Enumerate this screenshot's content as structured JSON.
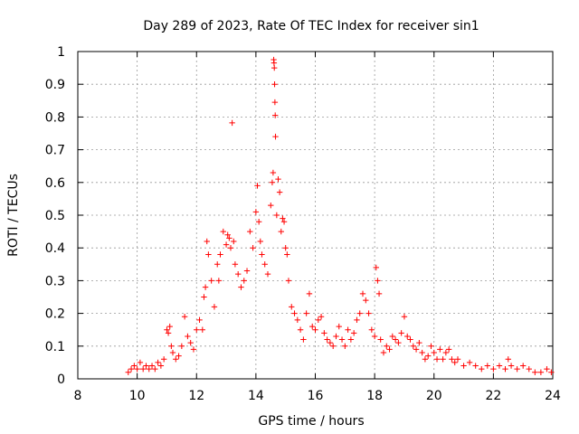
{
  "chart_data": {
    "type": "scatter",
    "title": "Day 289 of 2023, Rate Of TEC Index for receiver sin1",
    "xlabel": "GPS time / hours",
    "ylabel": "ROTI / TECUs",
    "xlim": [
      8,
      24
    ],
    "ylim": [
      0,
      1
    ],
    "grid": true,
    "marker": "+",
    "color": "#ff0000",
    "x_ticks": [
      "8",
      "10",
      "12",
      "14",
      "16",
      "18",
      "20",
      "22",
      "24"
    ],
    "y_ticks": [
      "0",
      "0.1",
      "0.2",
      "0.3",
      "0.4",
      "0.5",
      "0.6",
      "0.7",
      "0.8",
      "0.9",
      "1"
    ],
    "points": [
      [
        9.7,
        0.02
      ],
      [
        9.8,
        0.03
      ],
      [
        9.9,
        0.04
      ],
      [
        10.0,
        0.03
      ],
      [
        10.1,
        0.05
      ],
      [
        10.2,
        0.03
      ],
      [
        10.3,
        0.04
      ],
      [
        10.4,
        0.03
      ],
      [
        10.5,
        0.04
      ],
      [
        10.6,
        0.03
      ],
      [
        10.7,
        0.05
      ],
      [
        10.8,
        0.04
      ],
      [
        10.9,
        0.06
      ],
      [
        11.0,
        0.15
      ],
      [
        11.05,
        0.14
      ],
      [
        11.1,
        0.16
      ],
      [
        11.15,
        0.1
      ],
      [
        11.2,
        0.08
      ],
      [
        11.3,
        0.06
      ],
      [
        11.4,
        0.07
      ],
      [
        11.5,
        0.1
      ],
      [
        11.6,
        0.19
      ],
      [
        11.7,
        0.13
      ],
      [
        11.8,
        0.11
      ],
      [
        11.9,
        0.09
      ],
      [
        12.0,
        0.15
      ],
      [
        12.1,
        0.18
      ],
      [
        12.2,
        0.15
      ],
      [
        12.25,
        0.25
      ],
      [
        12.3,
        0.28
      ],
      [
        12.35,
        0.42
      ],
      [
        12.4,
        0.38
      ],
      [
        12.5,
        0.3
      ],
      [
        12.6,
        0.22
      ],
      [
        12.7,
        0.35
      ],
      [
        12.75,
        0.3
      ],
      [
        12.8,
        0.38
      ],
      [
        12.9,
        0.45
      ],
      [
        13.0,
        0.41
      ],
      [
        13.05,
        0.44
      ],
      [
        13.1,
        0.43
      ],
      [
        13.15,
        0.4
      ],
      [
        13.2,
        0.782
      ],
      [
        13.25,
        0.42
      ],
      [
        13.3,
        0.35
      ],
      [
        13.4,
        0.32
      ],
      [
        13.5,
        0.28
      ],
      [
        13.6,
        0.3
      ],
      [
        13.7,
        0.33
      ],
      [
        13.8,
        0.45
      ],
      [
        13.9,
        0.4
      ],
      [
        14.0,
        0.51
      ],
      [
        14.05,
        0.59
      ],
      [
        14.1,
        0.48
      ],
      [
        14.15,
        0.42
      ],
      [
        14.2,
        0.38
      ],
      [
        14.3,
        0.35
      ],
      [
        14.4,
        0.32
      ],
      [
        14.5,
        0.53
      ],
      [
        14.55,
        0.6
      ],
      [
        14.58,
        0.63
      ],
      [
        14.6,
        0.975
      ],
      [
        14.61,
        0.965
      ],
      [
        14.62,
        0.95
      ],
      [
        14.63,
        0.9
      ],
      [
        14.64,
        0.845
      ],
      [
        14.65,
        0.805
      ],
      [
        14.66,
        0.74
      ],
      [
        14.7,
        0.5
      ],
      [
        14.75,
        0.61
      ],
      [
        14.8,
        0.57
      ],
      [
        14.85,
        0.45
      ],
      [
        14.9,
        0.49
      ],
      [
        14.95,
        0.48
      ],
      [
        15.0,
        0.4
      ],
      [
        15.05,
        0.38
      ],
      [
        15.1,
        0.3
      ],
      [
        15.2,
        0.22
      ],
      [
        15.3,
        0.2
      ],
      [
        15.4,
        0.18
      ],
      [
        15.5,
        0.15
      ],
      [
        15.6,
        0.12
      ],
      [
        15.7,
        0.2
      ],
      [
        15.8,
        0.26
      ],
      [
        15.9,
        0.16
      ],
      [
        16.0,
        0.15
      ],
      [
        16.1,
        0.18
      ],
      [
        16.2,
        0.19
      ],
      [
        16.3,
        0.14
      ],
      [
        16.4,
        0.12
      ],
      [
        16.5,
        0.11
      ],
      [
        16.6,
        0.1
      ],
      [
        16.7,
        0.13
      ],
      [
        16.8,
        0.16
      ],
      [
        16.9,
        0.12
      ],
      [
        17.0,
        0.1
      ],
      [
        17.1,
        0.15
      ],
      [
        17.2,
        0.12
      ],
      [
        17.3,
        0.14
      ],
      [
        17.4,
        0.18
      ],
      [
        17.5,
        0.2
      ],
      [
        17.6,
        0.26
      ],
      [
        17.7,
        0.24
      ],
      [
        17.8,
        0.2
      ],
      [
        17.9,
        0.15
      ],
      [
        18.0,
        0.13
      ],
      [
        18.05,
        0.34
      ],
      [
        18.1,
        0.3
      ],
      [
        18.15,
        0.26
      ],
      [
        18.2,
        0.12
      ],
      [
        18.3,
        0.08
      ],
      [
        18.4,
        0.1
      ],
      [
        18.5,
        0.09
      ],
      [
        18.6,
        0.13
      ],
      [
        18.7,
        0.12
      ],
      [
        18.8,
        0.11
      ],
      [
        18.9,
        0.14
      ],
      [
        19.0,
        0.19
      ],
      [
        19.1,
        0.13
      ],
      [
        19.2,
        0.12
      ],
      [
        19.3,
        0.1
      ],
      [
        19.4,
        0.09
      ],
      [
        19.5,
        0.11
      ],
      [
        19.6,
        0.08
      ],
      [
        19.7,
        0.06
      ],
      [
        19.8,
        0.07
      ],
      [
        19.9,
        0.1
      ],
      [
        20.0,
        0.08
      ],
      [
        20.1,
        0.06
      ],
      [
        20.2,
        0.09
      ],
      [
        20.3,
        0.06
      ],
      [
        20.4,
        0.08
      ],
      [
        20.5,
        0.09
      ],
      [
        20.6,
        0.06
      ],
      [
        20.7,
        0.05
      ],
      [
        20.8,
        0.06
      ],
      [
        21.0,
        0.04
      ],
      [
        21.2,
        0.05
      ],
      [
        21.4,
        0.04
      ],
      [
        21.6,
        0.03
      ],
      [
        21.8,
        0.04
      ],
      [
        22.0,
        0.03
      ],
      [
        22.2,
        0.04
      ],
      [
        22.4,
        0.03
      ],
      [
        22.5,
        0.06
      ],
      [
        22.6,
        0.04
      ],
      [
        22.8,
        0.03
      ],
      [
        23.0,
        0.04
      ],
      [
        23.2,
        0.03
      ],
      [
        23.4,
        0.02
      ],
      [
        23.6,
        0.02
      ],
      [
        23.8,
        0.03
      ],
      [
        23.95,
        0.02
      ]
    ]
  }
}
